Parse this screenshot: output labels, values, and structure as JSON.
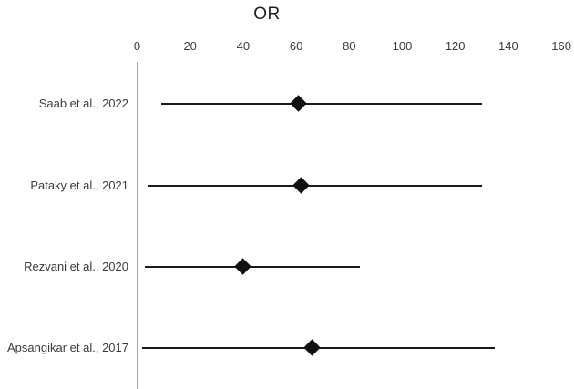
{
  "chart_data": {
    "type": "scatter",
    "subtype": "forest-plot",
    "title": "OR",
    "xlabel": "",
    "ylabel": "",
    "x_axis": {
      "min": 0,
      "max": 160,
      "ticks": [
        0,
        20,
        40,
        60,
        80,
        100,
        120,
        140,
        160
      ],
      "gridlines": false,
      "zero_line": true
    },
    "studies": [
      {
        "label": "Saab et al., 2022",
        "or": 61,
        "ci_low": 9,
        "ci_high": 130
      },
      {
        "label": "Pataky et al., 2021",
        "or": 62,
        "ci_low": 4,
        "ci_high": 130
      },
      {
        "label": "Rezvani et al., 2020",
        "or": 40,
        "ci_low": 3,
        "ci_high": 84
      },
      {
        "label": "Apsangikar et al., 2017",
        "or": 66,
        "ci_low": 2,
        "ci_high": 135
      }
    ],
    "marker": "diamond",
    "colors": {
      "marker": "#111111",
      "ci_line": "#1a1a1a",
      "axis_line": "#a6a6a6",
      "tick_text": "#3a3a3a",
      "title_text": "#1f1f1f",
      "background": "#ffffff"
    }
  }
}
